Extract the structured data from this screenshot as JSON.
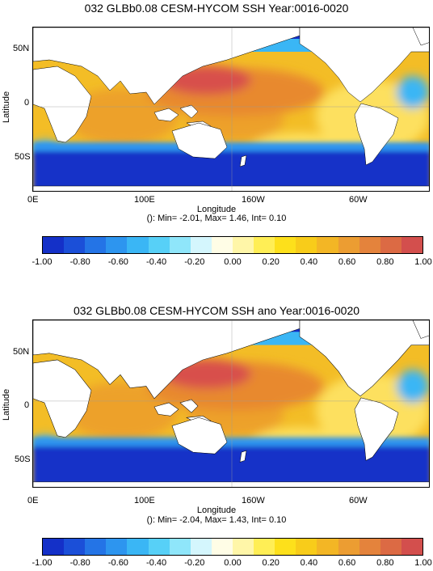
{
  "panels": [
    {
      "title": "032 GLBb0.08 CESM-HYCOM SSH Year:0016-0020",
      "stats": "(): Min= -2.01, Max= 1.46, Int= 0.10"
    },
    {
      "title": "032 GLBb0.08 CESM-HYCOM SSH ano Year:0016-0020",
      "stats": "(): Min= -2.04, Max= 1.43, Int= 0.10"
    }
  ],
  "axes": {
    "ylabel": "Latitude",
    "xlabel": "Longitude",
    "yticks": [
      "50N",
      "0",
      "50S"
    ],
    "xticks": [
      "0E",
      "100E",
      "160W",
      "60W"
    ]
  },
  "colorbar": {
    "ticks": [
      "-1.00",
      "-0.80",
      "-0.60",
      "-0.40",
      "-0.20",
      "0.00",
      "0.20",
      "0.40",
      "0.60",
      "0.80",
      "1.00"
    ],
    "colors": [
      "#1430c8",
      "#1b4fd8",
      "#2474e6",
      "#2d95ef",
      "#3ab6f5",
      "#57d0f7",
      "#8fe6fa",
      "#d4f6fd",
      "#fffde6",
      "#fff6a8",
      "#ffee55",
      "#fde01b",
      "#f8cc1a",
      "#f3b625",
      "#ec9d32",
      "#e4833c",
      "#dc6a44",
      "#d34f4d"
    ]
  },
  "map_colors": {
    "ocean_base": "#f3bd26",
    "north_pacific_high": "#d84f4c",
    "kuroshio_orange": "#e8892f",
    "equatorial_orange": "#eda12c",
    "eastern_pacific_yellow": "#fde05e",
    "southern_ocean": "#1430c8",
    "circumpolar_front": "#2d95ef",
    "arctic_cyan": "#3ab6f5",
    "land": "#ffffff"
  }
}
